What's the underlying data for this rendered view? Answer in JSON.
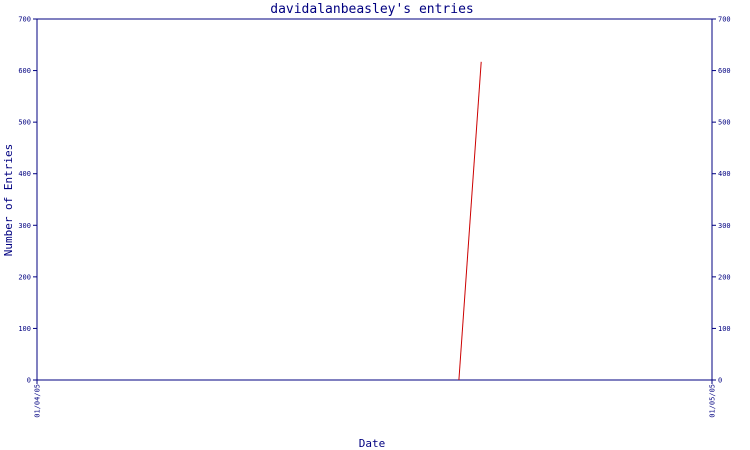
{
  "chart_data": {
    "type": "line",
    "title": "davidalanbeasley's entries",
    "xlabel": "Date",
    "ylabel": "Number of Entries",
    "x_ticks": [
      "01/04/05",
      "01/05/05"
    ],
    "xlim": [
      "01/04/05",
      "01/05/05"
    ],
    "ylim": [
      0,
      700
    ],
    "y_ticks": [
      0,
      100,
      200,
      300,
      400,
      500,
      600,
      700
    ],
    "grid": false,
    "series": [
      {
        "color": "#cc0000",
        "points": [
          {
            "x": 0.625,
            "y": 0
          },
          {
            "x": 0.658,
            "y": 617
          }
        ]
      }
    ]
  }
}
